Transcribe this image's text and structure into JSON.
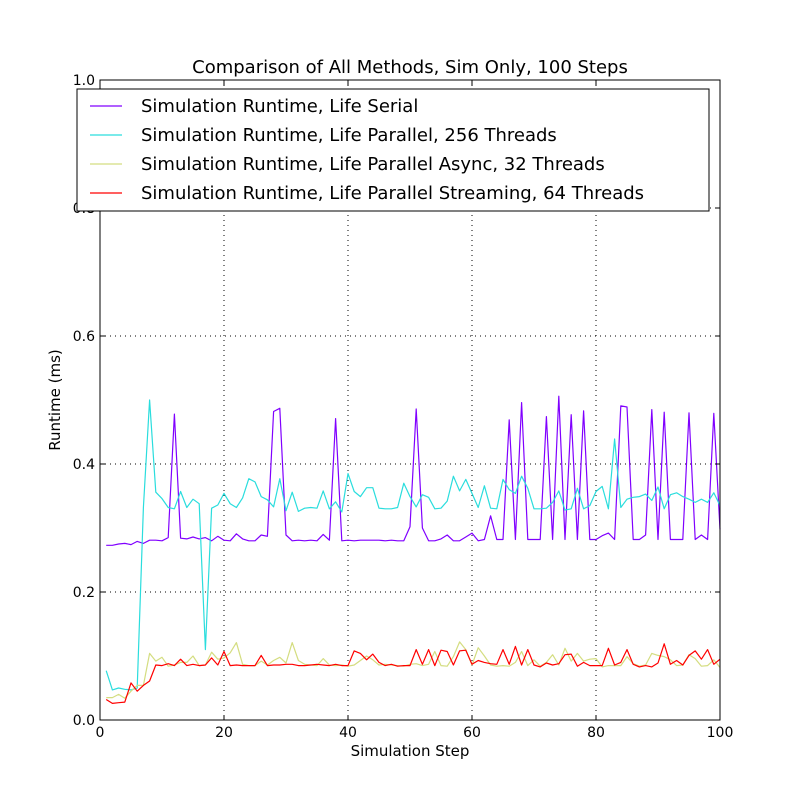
{
  "chart_data": {
    "type": "line",
    "title": "Comparison of All Methods, Sim Only, 100 Steps",
    "xlabel": "Simulation Step",
    "ylabel": "Runtime (ms)",
    "xlim": [
      0,
      100
    ],
    "ylim": [
      0.0,
      1.0
    ],
    "xticks": [
      "0",
      "20",
      "40",
      "60",
      "80",
      "100"
    ],
    "yticks": [
      "0.0",
      "0.2",
      "0.4",
      "0.6",
      "0.8",
      "1.0"
    ],
    "grid": true,
    "legend_position": "top",
    "x": [
      1,
      2,
      3,
      4,
      5,
      6,
      7,
      8,
      9,
      10,
      11,
      12,
      13,
      14,
      15,
      16,
      17,
      18,
      19,
      20,
      21,
      22,
      23,
      24,
      25,
      26,
      27,
      28,
      29,
      30,
      31,
      32,
      33,
      34,
      35,
      36,
      37,
      38,
      39,
      40,
      41,
      42,
      43,
      44,
      45,
      46,
      47,
      48,
      49,
      50,
      51,
      52,
      53,
      54,
      55,
      56,
      57,
      58,
      59,
      60,
      61,
      62,
      63,
      64,
      65,
      66,
      67,
      68,
      69,
      70,
      71,
      72,
      73,
      74,
      75,
      76,
      77,
      78,
      79,
      80,
      81,
      82,
      83,
      84,
      85,
      86,
      87,
      88,
      89,
      90,
      91,
      92,
      93,
      94,
      95,
      96,
      97,
      98,
      99,
      100
    ],
    "series": [
      {
        "name": "Simulation Runtime, Life Serial",
        "color": "#8000ff",
        "values": [
          0.273,
          0.273,
          0.275,
          0.276,
          0.274,
          0.279,
          0.276,
          0.281,
          0.281,
          0.28,
          0.285,
          0.478,
          0.284,
          0.283,
          0.286,
          0.283,
          0.285,
          0.28,
          0.287,
          0.281,
          0.28,
          0.291,
          0.283,
          0.28,
          0.28,
          0.289,
          0.287,
          0.482,
          0.487,
          0.289,
          0.28,
          0.281,
          0.28,
          0.281,
          0.28,
          0.29,
          0.281,
          0.471,
          0.28,
          0.281,
          0.28,
          0.281,
          0.281,
          0.281,
          0.281,
          0.28,
          0.281,
          0.28,
          0.28,
          0.302,
          0.486,
          0.3,
          0.28,
          0.28,
          0.283,
          0.289,
          0.28,
          0.28,
          0.286,
          0.292,
          0.28,
          0.282,
          0.319,
          0.282,
          0.282,
          0.469,
          0.282,
          0.496,
          0.282,
          0.282,
          0.282,
          0.474,
          0.282,
          0.506,
          0.282,
          0.477,
          0.282,
          0.483,
          0.282,
          0.282,
          0.288,
          0.292,
          0.282,
          0.491,
          0.489,
          0.282,
          0.282,
          0.289,
          0.485,
          0.282,
          0.481,
          0.282,
          0.282,
          0.282,
          0.48,
          0.282,
          0.289,
          0.282,
          0.479,
          0.298
        ]
      },
      {
        "name": "Simulation Runtime, Life Parallel, 256 Threads",
        "color": "#2adddd",
        "values": [
          0.077,
          0.047,
          0.05,
          0.048,
          0.047,
          0.05,
          0.332,
          0.5,
          0.356,
          0.346,
          0.332,
          0.33,
          0.357,
          0.332,
          0.345,
          0.338,
          0.11,
          0.331,
          0.336,
          0.354,
          0.338,
          0.332,
          0.347,
          0.377,
          0.372,
          0.349,
          0.344,
          0.333,
          0.377,
          0.327,
          0.356,
          0.326,
          0.331,
          0.332,
          0.331,
          0.358,
          0.33,
          0.341,
          0.325,
          0.385,
          0.357,
          0.349,
          0.363,
          0.363,
          0.331,
          0.33,
          0.33,
          0.332,
          0.37,
          0.349,
          0.333,
          0.352,
          0.348,
          0.33,
          0.331,
          0.342,
          0.381,
          0.358,
          0.376,
          0.354,
          0.332,
          0.366,
          0.331,
          0.33,
          0.376,
          0.36,
          0.354,
          0.381,
          0.362,
          0.33,
          0.33,
          0.331,
          0.34,
          0.358,
          0.328,
          0.33,
          0.362,
          0.33,
          0.335,
          0.357,
          0.365,
          0.33,
          0.439,
          0.332,
          0.345,
          0.348,
          0.349,
          0.353,
          0.343,
          0.364,
          0.33,
          0.352,
          0.355,
          0.349,
          0.345,
          0.34,
          0.345,
          0.34,
          0.355,
          0.335
        ]
      },
      {
        "name": "Simulation Runtime, Life Parallel Async, 32 Threads",
        "color": "#d4dd80",
        "values": [
          0.035,
          0.035,
          0.04,
          0.034,
          0.045,
          0.054,
          0.054,
          0.104,
          0.092,
          0.098,
          0.084,
          0.086,
          0.09,
          0.09,
          0.1,
          0.085,
          0.086,
          0.106,
          0.095,
          0.097,
          0.105,
          0.121,
          0.087,
          0.085,
          0.085,
          0.092,
          0.086,
          0.093,
          0.098,
          0.089,
          0.121,
          0.093,
          0.087,
          0.086,
          0.085,
          0.096,
          0.086,
          0.085,
          0.086,
          0.084,
          0.086,
          0.093,
          0.1,
          0.094,
          0.086,
          0.087,
          0.086,
          0.085,
          0.084,
          0.087,
          0.088,
          0.085,
          0.087,
          0.107,
          0.085,
          0.084,
          0.099,
          0.122,
          0.11,
          0.086,
          0.113,
          0.1,
          0.086,
          0.084,
          0.085,
          0.084,
          0.09,
          0.107,
          0.085,
          0.094,
          0.084,
          0.09,
          0.102,
          0.086,
          0.112,
          0.092,
          0.104,
          0.092,
          0.095,
          0.096,
          0.083,
          0.085,
          0.085,
          0.085,
          0.099,
          0.088,
          0.084,
          0.086,
          0.104,
          0.101,
          0.099,
          0.094,
          0.085,
          0.086,
          0.102,
          0.096,
          0.084,
          0.085,
          0.094,
          0.082
        ]
      },
      {
        "name": "Simulation Runtime, Life Parallel Streaming, 64 Threads",
        "color": "#ff0000",
        "values": [
          0.032,
          0.026,
          0.027,
          0.028,
          0.058,
          0.045,
          0.054,
          0.061,
          0.086,
          0.085,
          0.088,
          0.085,
          0.095,
          0.085,
          0.087,
          0.085,
          0.086,
          0.097,
          0.086,
          0.107,
          0.085,
          0.086,
          0.085,
          0.085,
          0.085,
          0.101,
          0.085,
          0.086,
          0.086,
          0.087,
          0.087,
          0.085,
          0.085,
          0.086,
          0.087,
          0.086,
          0.085,
          0.087,
          0.085,
          0.085,
          0.108,
          0.104,
          0.094,
          0.103,
          0.09,
          0.085,
          0.087,
          0.084,
          0.085,
          0.085,
          0.11,
          0.087,
          0.11,
          0.085,
          0.109,
          0.107,
          0.086,
          0.108,
          0.109,
          0.087,
          0.093,
          0.09,
          0.088,
          0.087,
          0.11,
          0.087,
          0.115,
          0.086,
          0.11,
          0.086,
          0.083,
          0.089,
          0.086,
          0.088,
          0.102,
          0.103,
          0.084,
          0.09,
          0.085,
          0.085,
          0.085,
          0.112,
          0.086,
          0.09,
          0.11,
          0.087,
          0.083,
          0.085,
          0.083,
          0.089,
          0.119,
          0.087,
          0.093,
          0.086,
          0.101,
          0.108,
          0.095,
          0.11,
          0.087,
          0.095
        ]
      }
    ]
  }
}
